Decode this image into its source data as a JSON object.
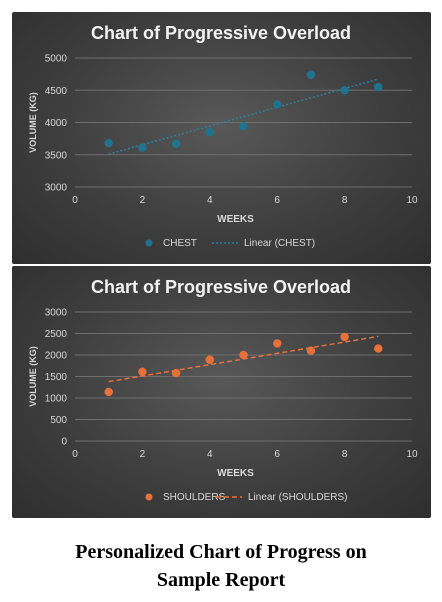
{
  "chart_data": [
    {
      "type": "scatter",
      "title": "Chart of Progressive Overload",
      "xlabel": "WEEKS",
      "ylabel": "VOLUME (KG)",
      "xlim": [
        0,
        10
      ],
      "ylim": [
        3000,
        5000
      ],
      "xticks": [
        "0",
        "2",
        "4",
        "6",
        "8",
        "10"
      ],
      "yticks": [
        "3000",
        "3500",
        "4000",
        "4500",
        "5000"
      ],
      "grid": "horizontal",
      "legend_position": "bottom",
      "series": [
        {
          "name": "CHEST",
          "marker_color": "#1f7391",
          "x": [
            1,
            2,
            3,
            4,
            5,
            6,
            7,
            8,
            9
          ],
          "y": [
            3680,
            3610,
            3670,
            3850,
            3940,
            4280,
            4740,
            4500,
            4550
          ]
        }
      ],
      "trendline": {
        "name": "Linear (CHEST)",
        "type": "linear",
        "style": "dotted",
        "color": "#2b7f9e"
      }
    },
    {
      "type": "scatter",
      "title": "Chart of Progressive Overload",
      "xlabel": "WEEKS",
      "ylabel": "VOLUME (KG)",
      "xlim": [
        0,
        10
      ],
      "ylim": [
        0,
        3000
      ],
      "xticks": [
        "0",
        "2",
        "4",
        "6",
        "8",
        "10"
      ],
      "yticks": [
        "0",
        "500",
        "1000",
        "1500",
        "2000",
        "2500",
        "3000"
      ],
      "grid": "horizontal",
      "legend_position": "bottom",
      "series": [
        {
          "name": "SHOULDERS",
          "marker_color": "#e8703a",
          "x": [
            1,
            2,
            3,
            4,
            5,
            6,
            7,
            8,
            9
          ],
          "y": [
            1140,
            1610,
            1580,
            1890,
            2000,
            2270,
            2100,
            2420,
            2150
          ]
        }
      ],
      "trendline": {
        "name": "Linear (SHOULDERS)",
        "type": "linear",
        "style": "dashed",
        "color": "#e8703a"
      }
    }
  ],
  "caption": {
    "line1": "Personalized Chart of Progress on",
    "line2": "Sample Report"
  }
}
